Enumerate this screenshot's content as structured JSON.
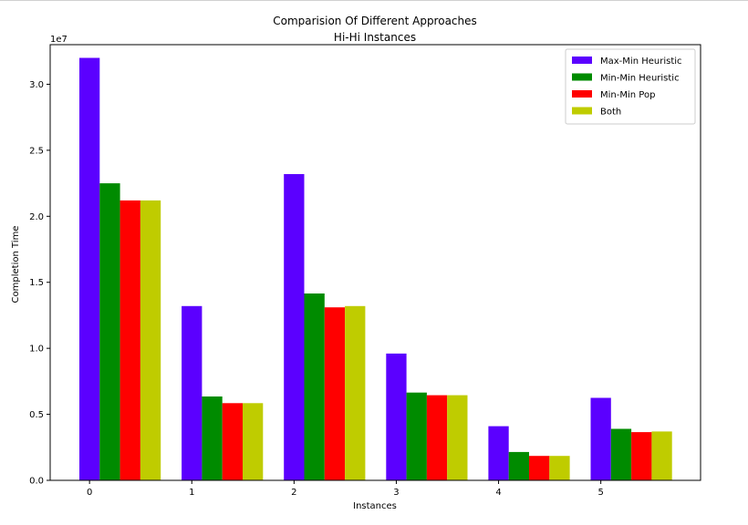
{
  "chart_data": {
    "type": "bar",
    "title": "Comparision Of Different Approaches",
    "subtitle": "Hi-Hi Instances",
    "xlabel": "Instances",
    "ylabel": "Completion Time",
    "y_offset_text": "1e7",
    "categories": [
      "0",
      "1",
      "2",
      "3",
      "4",
      "5"
    ],
    "yticks": [
      "0.0",
      "0.5",
      "1.0",
      "1.5",
      "2.0",
      "2.5",
      "3.0"
    ],
    "ytick_values": [
      0,
      5000000,
      10000000,
      15000000,
      20000000,
      25000000,
      30000000
    ],
    "ylim": [
      0,
      33000000
    ],
    "grid": false,
    "legend_position": "top-right",
    "series": [
      {
        "name": "Max-Min Heuristic",
        "color": "#5b00ff",
        "values": [
          32000000,
          13200000,
          23200000,
          9600000,
          4100000,
          6250000
        ]
      },
      {
        "name": "Min-Min Heuristic",
        "color": "#008b00",
        "values": [
          22500000,
          6350000,
          14150000,
          6650000,
          2150000,
          3900000
        ]
      },
      {
        "name": "Min-Min Pop",
        "color": "#ff0000",
        "values": [
          21200000,
          5850000,
          13100000,
          6450000,
          1850000,
          3650000
        ]
      },
      {
        "name": "Both",
        "color": "#bfcc00",
        "values": [
          21200000,
          5850000,
          13200000,
          6450000,
          1850000,
          3700000
        ]
      }
    ]
  }
}
